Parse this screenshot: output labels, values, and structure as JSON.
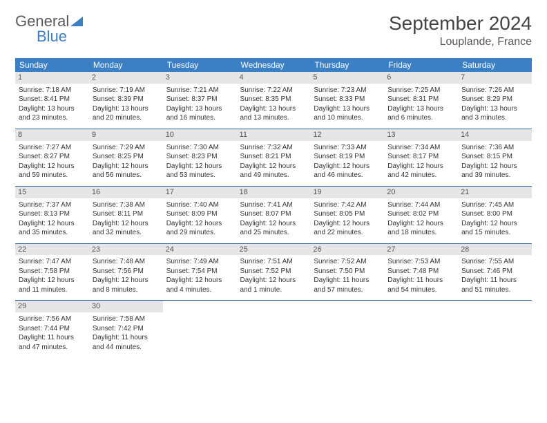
{
  "logo": {
    "text1": "General",
    "text2": "Blue"
  },
  "title": "September 2024",
  "location": "Louplande, France",
  "headers": [
    "Sunday",
    "Monday",
    "Tuesday",
    "Wednesday",
    "Thursday",
    "Friday",
    "Saturday"
  ],
  "colors": {
    "header_bg": "#3b7fc4",
    "header_fg": "#ffffff",
    "daynum_bg": "#e6e6e6",
    "row_border": "#2d6aa8",
    "logo_gray": "#5a5a5a",
    "logo_blue": "#3b7fc4"
  },
  "weeks": [
    [
      {
        "n": "1",
        "sr": "7:18 AM",
        "ss": "8:41 PM",
        "dl": "13 hours and 23 minutes."
      },
      {
        "n": "2",
        "sr": "7:19 AM",
        "ss": "8:39 PM",
        "dl": "13 hours and 20 minutes."
      },
      {
        "n": "3",
        "sr": "7:21 AM",
        "ss": "8:37 PM",
        "dl": "13 hours and 16 minutes."
      },
      {
        "n": "4",
        "sr": "7:22 AM",
        "ss": "8:35 PM",
        "dl": "13 hours and 13 minutes."
      },
      {
        "n": "5",
        "sr": "7:23 AM",
        "ss": "8:33 PM",
        "dl": "13 hours and 10 minutes."
      },
      {
        "n": "6",
        "sr": "7:25 AM",
        "ss": "8:31 PM",
        "dl": "13 hours and 6 minutes."
      },
      {
        "n": "7",
        "sr": "7:26 AM",
        "ss": "8:29 PM",
        "dl": "13 hours and 3 minutes."
      }
    ],
    [
      {
        "n": "8",
        "sr": "7:27 AM",
        "ss": "8:27 PM",
        "dl": "12 hours and 59 minutes."
      },
      {
        "n": "9",
        "sr": "7:29 AM",
        "ss": "8:25 PM",
        "dl": "12 hours and 56 minutes."
      },
      {
        "n": "10",
        "sr": "7:30 AM",
        "ss": "8:23 PM",
        "dl": "12 hours and 53 minutes."
      },
      {
        "n": "11",
        "sr": "7:32 AM",
        "ss": "8:21 PM",
        "dl": "12 hours and 49 minutes."
      },
      {
        "n": "12",
        "sr": "7:33 AM",
        "ss": "8:19 PM",
        "dl": "12 hours and 46 minutes."
      },
      {
        "n": "13",
        "sr": "7:34 AM",
        "ss": "8:17 PM",
        "dl": "12 hours and 42 minutes."
      },
      {
        "n": "14",
        "sr": "7:36 AM",
        "ss": "8:15 PM",
        "dl": "12 hours and 39 minutes."
      }
    ],
    [
      {
        "n": "15",
        "sr": "7:37 AM",
        "ss": "8:13 PM",
        "dl": "12 hours and 35 minutes."
      },
      {
        "n": "16",
        "sr": "7:38 AM",
        "ss": "8:11 PM",
        "dl": "12 hours and 32 minutes."
      },
      {
        "n": "17",
        "sr": "7:40 AM",
        "ss": "8:09 PM",
        "dl": "12 hours and 29 minutes."
      },
      {
        "n": "18",
        "sr": "7:41 AM",
        "ss": "8:07 PM",
        "dl": "12 hours and 25 minutes."
      },
      {
        "n": "19",
        "sr": "7:42 AM",
        "ss": "8:05 PM",
        "dl": "12 hours and 22 minutes."
      },
      {
        "n": "20",
        "sr": "7:44 AM",
        "ss": "8:02 PM",
        "dl": "12 hours and 18 minutes."
      },
      {
        "n": "21",
        "sr": "7:45 AM",
        "ss": "8:00 PM",
        "dl": "12 hours and 15 minutes."
      }
    ],
    [
      {
        "n": "22",
        "sr": "7:47 AM",
        "ss": "7:58 PM",
        "dl": "12 hours and 11 minutes."
      },
      {
        "n": "23",
        "sr": "7:48 AM",
        "ss": "7:56 PM",
        "dl": "12 hours and 8 minutes."
      },
      {
        "n": "24",
        "sr": "7:49 AM",
        "ss": "7:54 PM",
        "dl": "12 hours and 4 minutes."
      },
      {
        "n": "25",
        "sr": "7:51 AM",
        "ss": "7:52 PM",
        "dl": "12 hours and 1 minute."
      },
      {
        "n": "26",
        "sr": "7:52 AM",
        "ss": "7:50 PM",
        "dl": "11 hours and 57 minutes."
      },
      {
        "n": "27",
        "sr": "7:53 AM",
        "ss": "7:48 PM",
        "dl": "11 hours and 54 minutes."
      },
      {
        "n": "28",
        "sr": "7:55 AM",
        "ss": "7:46 PM",
        "dl": "11 hours and 51 minutes."
      }
    ],
    [
      {
        "n": "29",
        "sr": "7:56 AM",
        "ss": "7:44 PM",
        "dl": "11 hours and 47 minutes."
      },
      {
        "n": "30",
        "sr": "7:58 AM",
        "ss": "7:42 PM",
        "dl": "11 hours and 44 minutes."
      },
      null,
      null,
      null,
      null,
      null
    ]
  ],
  "labels": {
    "sunrise": "Sunrise: ",
    "sunset": "Sunset: ",
    "daylight": "Daylight: "
  }
}
